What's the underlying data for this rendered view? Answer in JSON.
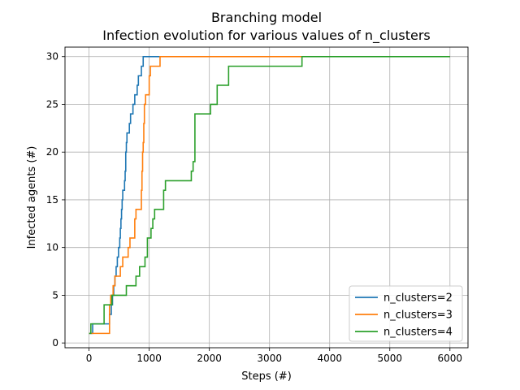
{
  "chart_data": {
    "type": "line",
    "title": "Branching model",
    "subtitle": "Infection evolution for various values of n_clusters",
    "xlabel": "Steps (#)",
    "ylabel": "Infected agents (#)",
    "xlim": [
      -400,
      6300
    ],
    "ylim": [
      -0.5,
      31.0
    ],
    "xticks": [
      0,
      1000,
      2000,
      3000,
      4000,
      5000,
      6000
    ],
    "yticks": [
      0,
      5,
      10,
      15,
      20,
      25,
      30
    ],
    "grid": true,
    "legend_position": "lower-right",
    "series": [
      {
        "name": "n_clusters=2",
        "color": "#1f77b4",
        "points": [
          [
            0,
            1
          ],
          [
            60,
            1
          ],
          [
            60,
            2
          ],
          [
            340,
            2
          ],
          [
            340,
            3
          ],
          [
            370,
            3
          ],
          [
            370,
            4
          ],
          [
            390,
            4
          ],
          [
            390,
            5
          ],
          [
            410,
            5
          ],
          [
            410,
            6
          ],
          [
            430,
            6
          ],
          [
            430,
            7
          ],
          [
            450,
            7
          ],
          [
            450,
            8
          ],
          [
            470,
            8
          ],
          [
            470,
            9
          ],
          [
            490,
            9
          ],
          [
            490,
            10
          ],
          [
            510,
            10
          ],
          [
            510,
            11
          ],
          [
            520,
            11
          ],
          [
            520,
            12
          ],
          [
            530,
            12
          ],
          [
            530,
            13
          ],
          [
            540,
            13
          ],
          [
            540,
            14
          ],
          [
            550,
            14
          ],
          [
            550,
            15
          ],
          [
            560,
            15
          ],
          [
            560,
            16
          ],
          [
            590,
            16
          ],
          [
            590,
            17
          ],
          [
            600,
            17
          ],
          [
            600,
            18
          ],
          [
            610,
            18
          ],
          [
            610,
            20
          ],
          [
            620,
            20
          ],
          [
            620,
            21
          ],
          [
            630,
            21
          ],
          [
            630,
            22
          ],
          [
            670,
            22
          ],
          [
            670,
            23
          ],
          [
            690,
            23
          ],
          [
            690,
            24
          ],
          [
            730,
            24
          ],
          [
            730,
            25
          ],
          [
            760,
            25
          ],
          [
            760,
            26
          ],
          [
            800,
            26
          ],
          [
            800,
            27
          ],
          [
            820,
            27
          ],
          [
            820,
            28
          ],
          [
            870,
            28
          ],
          [
            870,
            29
          ],
          [
            900,
            29
          ],
          [
            900,
            30
          ],
          [
            6000,
            30
          ]
        ]
      },
      {
        "name": "n_clusters=3",
        "color": "#ff7f0e",
        "points": [
          [
            0,
            1
          ],
          [
            340,
            1
          ],
          [
            340,
            4
          ],
          [
            360,
            4
          ],
          [
            360,
            5
          ],
          [
            400,
            5
          ],
          [
            400,
            6
          ],
          [
            430,
            6
          ],
          [
            430,
            7
          ],
          [
            520,
            7
          ],
          [
            520,
            8
          ],
          [
            560,
            8
          ],
          [
            560,
            9
          ],
          [
            650,
            9
          ],
          [
            650,
            10
          ],
          [
            680,
            10
          ],
          [
            680,
            11
          ],
          [
            760,
            11
          ],
          [
            760,
            13
          ],
          [
            780,
            13
          ],
          [
            780,
            14
          ],
          [
            870,
            14
          ],
          [
            870,
            16
          ],
          [
            880,
            16
          ],
          [
            880,
            18
          ],
          [
            890,
            18
          ],
          [
            890,
            20
          ],
          [
            900,
            20
          ],
          [
            900,
            21
          ],
          [
            910,
            21
          ],
          [
            910,
            23
          ],
          [
            920,
            23
          ],
          [
            920,
            25
          ],
          [
            940,
            25
          ],
          [
            940,
            26
          ],
          [
            1000,
            26
          ],
          [
            1000,
            28
          ],
          [
            1020,
            28
          ],
          [
            1020,
            29
          ],
          [
            1180,
            29
          ],
          [
            1180,
            30
          ],
          [
            6000,
            30
          ]
        ]
      },
      {
        "name": "n_clusters=4",
        "color": "#2ca02c",
        "points": [
          [
            0,
            1
          ],
          [
            30,
            1
          ],
          [
            30,
            2
          ],
          [
            250,
            2
          ],
          [
            250,
            4
          ],
          [
            380,
            4
          ],
          [
            380,
            5
          ],
          [
            620,
            5
          ],
          [
            620,
            6
          ],
          [
            780,
            6
          ],
          [
            780,
            7
          ],
          [
            840,
            7
          ],
          [
            840,
            8
          ],
          [
            930,
            8
          ],
          [
            930,
            9
          ],
          [
            970,
            9
          ],
          [
            970,
            11
          ],
          [
            1030,
            11
          ],
          [
            1030,
            12
          ],
          [
            1060,
            12
          ],
          [
            1060,
            13
          ],
          [
            1090,
            13
          ],
          [
            1090,
            14
          ],
          [
            1240,
            14
          ],
          [
            1240,
            16
          ],
          [
            1270,
            16
          ],
          [
            1270,
            17
          ],
          [
            1700,
            17
          ],
          [
            1700,
            18
          ],
          [
            1730,
            18
          ],
          [
            1730,
            19
          ],
          [
            1760,
            19
          ],
          [
            1760,
            24
          ],
          [
            2020,
            24
          ],
          [
            2020,
            25
          ],
          [
            2130,
            25
          ],
          [
            2130,
            27
          ],
          [
            2320,
            27
          ],
          [
            2320,
            29
          ],
          [
            3540,
            29
          ],
          [
            3540,
            30
          ],
          [
            6000,
            30
          ]
        ]
      }
    ]
  }
}
